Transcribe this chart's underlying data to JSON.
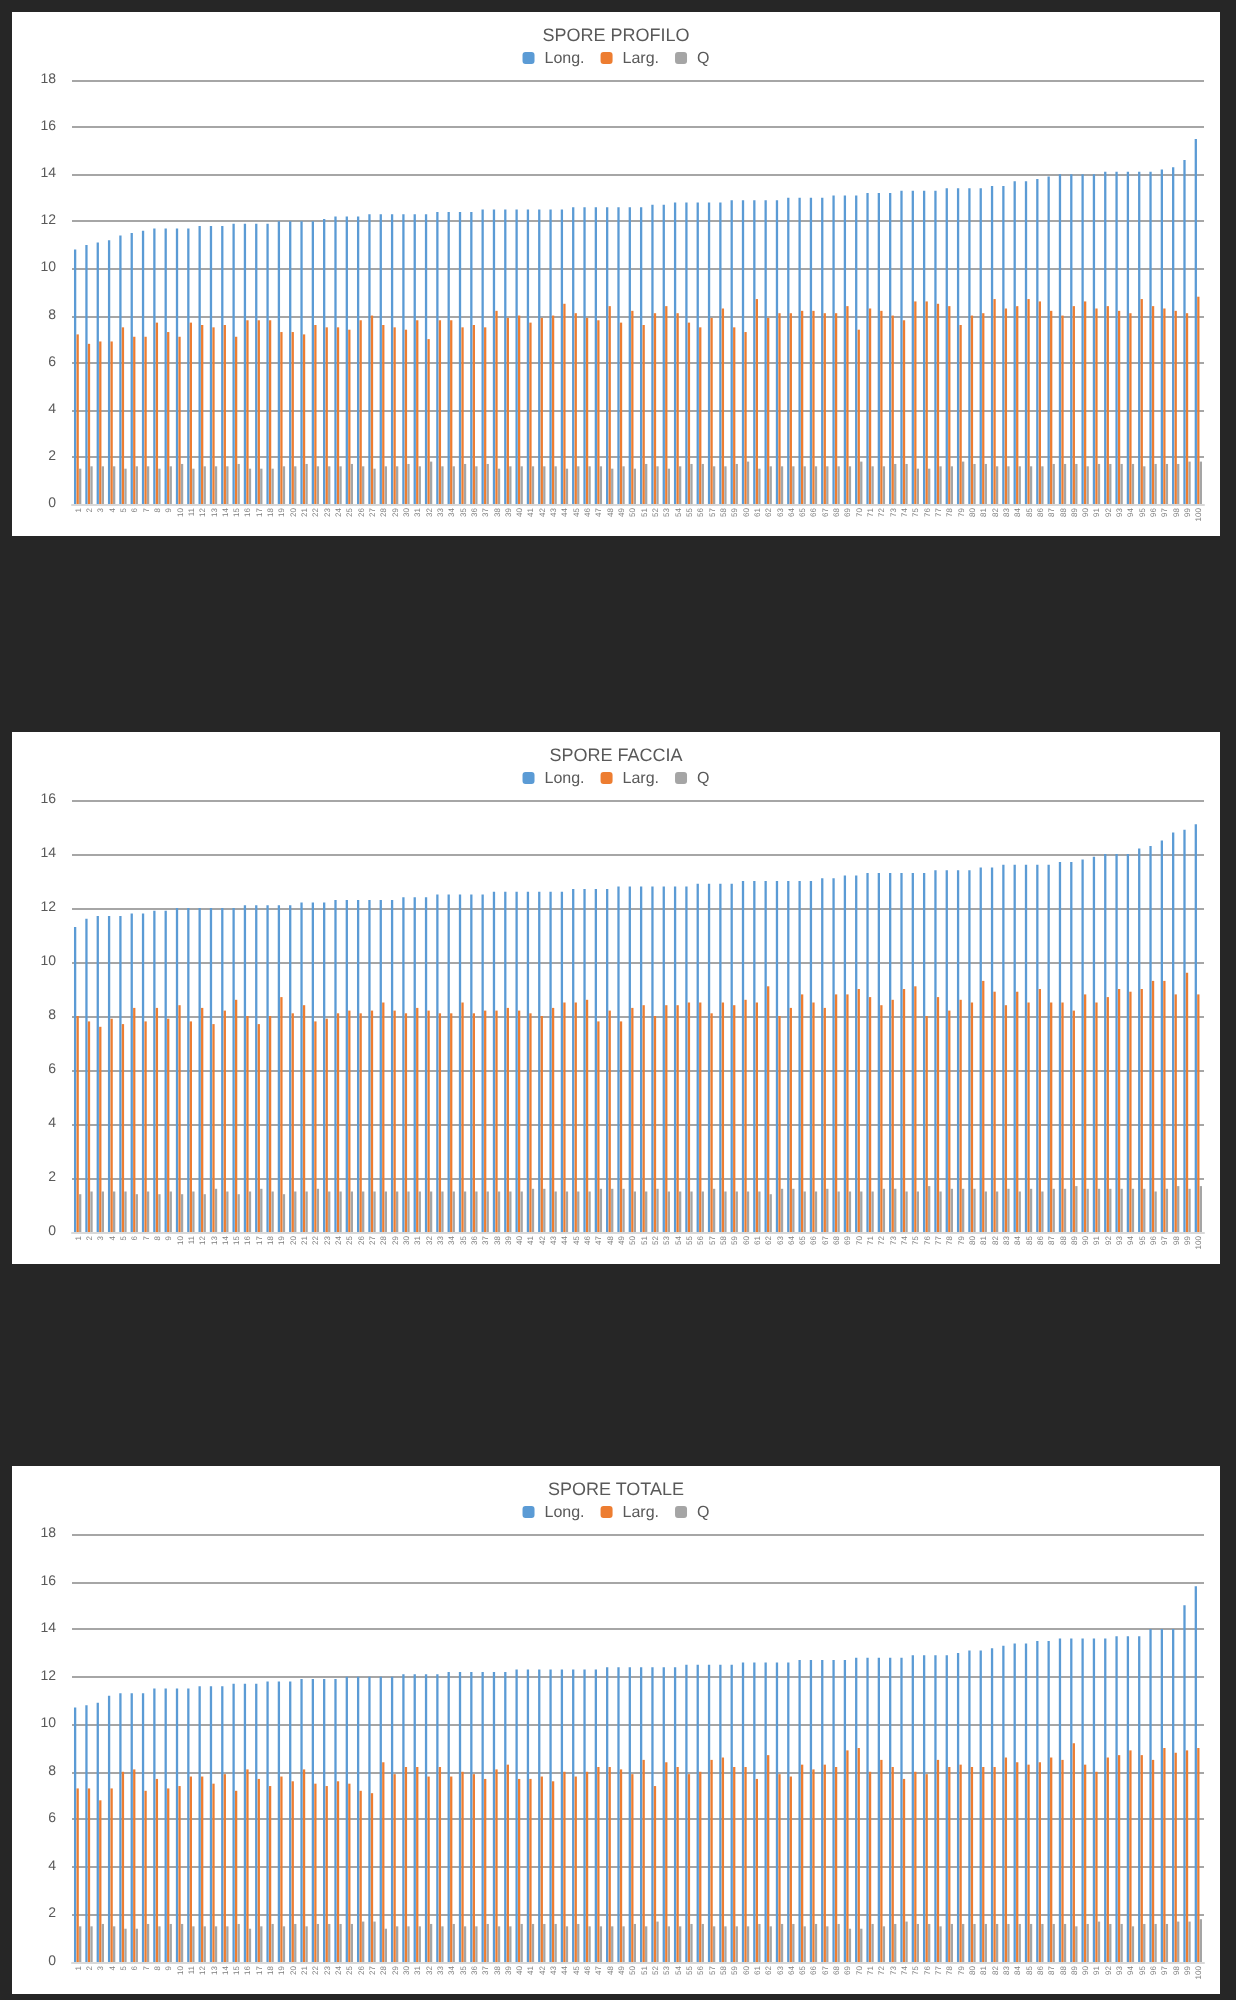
{
  "chart_data": [
    {
      "type": "bar",
      "title": "SPORE PROFILO",
      "legend": "top",
      "grid": "y",
      "ylim": [
        0,
        18
      ],
      "yticks": [
        0,
        2,
        4,
        6,
        8,
        10,
        12,
        14,
        16,
        18
      ],
      "categories": [
        "1",
        "2",
        "3",
        "4",
        "5",
        "6",
        "7",
        "8",
        "9",
        "10",
        "11",
        "12",
        "13",
        "14",
        "15",
        "16",
        "17",
        "18",
        "19",
        "20",
        "21",
        "22",
        "23",
        "24",
        "25",
        "26",
        "27",
        "28",
        "29",
        "30",
        "31",
        "32",
        "33",
        "34",
        "35",
        "36",
        "37",
        "38",
        "39",
        "40",
        "41",
        "42",
        "43",
        "44",
        "45",
        "46",
        "47",
        "48",
        "49",
        "50",
        "51",
        "52",
        "53",
        "54",
        "55",
        "56",
        "57",
        "58",
        "59",
        "60",
        "61",
        "62",
        "63",
        "64",
        "65",
        "66",
        "67",
        "68",
        "69",
        "70",
        "71",
        "72",
        "73",
        "74",
        "75",
        "76",
        "77",
        "78",
        "79",
        "80",
        "81",
        "82",
        "83",
        "84",
        "85",
        "86",
        "87",
        "88",
        "89",
        "90",
        "91",
        "92",
        "93",
        "94",
        "95",
        "96",
        "97",
        "98",
        "99",
        "100"
      ],
      "series": [
        {
          "name": "Long.",
          "color": "#5b9bd5",
          "values": [
            10.8,
            11.0,
            11.1,
            11.2,
            11.4,
            11.5,
            11.6,
            11.7,
            11.7,
            11.7,
            11.7,
            11.8,
            11.8,
            11.8,
            11.9,
            11.9,
            11.9,
            11.9,
            12.0,
            12.0,
            12.0,
            12.0,
            12.1,
            12.2,
            12.2,
            12.2,
            12.3,
            12.3,
            12.3,
            12.3,
            12.3,
            12.3,
            12.4,
            12.4,
            12.4,
            12.4,
            12.5,
            12.5,
            12.5,
            12.5,
            12.5,
            12.5,
            12.5,
            12.5,
            12.6,
            12.6,
            12.6,
            12.6,
            12.6,
            12.6,
            12.6,
            12.7,
            12.7,
            12.8,
            12.8,
            12.8,
            12.8,
            12.8,
            12.9,
            12.9,
            12.9,
            12.9,
            12.9,
            13.0,
            13.0,
            13.0,
            13.0,
            13.1,
            13.1,
            13.1,
            13.2,
            13.2,
            13.2,
            13.3,
            13.3,
            13.3,
            13.3,
            13.4,
            13.4,
            13.4,
            13.4,
            13.5,
            13.5,
            13.7,
            13.7,
            13.8,
            13.9,
            14.0,
            14.0,
            14.0,
            14.0,
            14.1,
            14.1,
            14.1,
            14.1,
            14.1,
            14.2,
            14.3,
            14.6,
            15.5
          ]
        },
        {
          "name": "Larg.",
          "color": "#ed7d31",
          "values": [
            7.2,
            6.8,
            6.9,
            6.9,
            7.5,
            7.1,
            7.1,
            7.7,
            7.3,
            7.1,
            7.7,
            7.6,
            7.5,
            7.6,
            7.1,
            7.8,
            7.8,
            7.8,
            7.3,
            7.3,
            7.2,
            7.6,
            7.5,
            7.5,
            7.4,
            7.8,
            8.0,
            7.6,
            7.5,
            7.4,
            7.8,
            7.0,
            7.8,
            7.8,
            7.5,
            7.6,
            7.5,
            8.2,
            7.9,
            8.0,
            7.7,
            7.9,
            8.0,
            8.5,
            8.1,
            7.9,
            7.8,
            8.4,
            7.7,
            8.2,
            7.6,
            8.1,
            8.4,
            8.1,
            7.7,
            7.5,
            7.9,
            8.3,
            7.5,
            7.3,
            8.7,
            7.9,
            8.1,
            8.1,
            8.2,
            8.2,
            8.1,
            8.1,
            8.4,
            7.4,
            8.3,
            8.2,
            8.0,
            7.8,
            8.6,
            8.6,
            8.5,
            8.4,
            7.6,
            8.0,
            8.1,
            8.7,
            8.3,
            8.4,
            8.7,
            8.6,
            8.2,
            8.0,
            8.4,
            8.6,
            8.3,
            8.4,
            8.2,
            8.1,
            8.7,
            8.4,
            8.3,
            8.2,
            8.1,
            8.8
          ]
        },
        {
          "name": "Q",
          "color": "#a5a5a5",
          "values": [
            1.5,
            1.6,
            1.6,
            1.6,
            1.5,
            1.6,
            1.6,
            1.5,
            1.6,
            1.7,
            1.5,
            1.6,
            1.6,
            1.6,
            1.7,
            1.5,
            1.5,
            1.5,
            1.6,
            1.6,
            1.7,
            1.6,
            1.6,
            1.6,
            1.7,
            1.6,
            1.5,
            1.6,
            1.6,
            1.7,
            1.6,
            1.8,
            1.6,
            1.6,
            1.7,
            1.6,
            1.7,
            1.5,
            1.6,
            1.6,
            1.6,
            1.6,
            1.6,
            1.5,
            1.6,
            1.6,
            1.6,
            1.5,
            1.6,
            1.5,
            1.7,
            1.6,
            1.5,
            1.6,
            1.7,
            1.7,
            1.6,
            1.6,
            1.7,
            1.8,
            1.5,
            1.6,
            1.6,
            1.6,
            1.6,
            1.6,
            1.6,
            1.6,
            1.6,
            1.8,
            1.6,
            1.6,
            1.7,
            1.7,
            1.5,
            1.5,
            1.6,
            1.6,
            1.8,
            1.7,
            1.7,
            1.6,
            1.6,
            1.6,
            1.6,
            1.6,
            1.7,
            1.7,
            1.7,
            1.6,
            1.7,
            1.7,
            1.7,
            1.7,
            1.6,
            1.7,
            1.7,
            1.7,
            1.8,
            1.8
          ]
        }
      ]
    },
    {
      "type": "bar",
      "title": "SPORE FACCIA",
      "legend": "top",
      "grid": "y",
      "ylim": [
        0,
        16
      ],
      "yticks": [
        0,
        2,
        4,
        6,
        8,
        10,
        12,
        14,
        16
      ],
      "categories": [
        "1",
        "2",
        "3",
        "4",
        "5",
        "6",
        "7",
        "8",
        "9",
        "10",
        "11",
        "12",
        "13",
        "14",
        "15",
        "16",
        "17",
        "18",
        "19",
        "20",
        "21",
        "22",
        "23",
        "24",
        "25",
        "26",
        "27",
        "28",
        "29",
        "30",
        "31",
        "32",
        "33",
        "34",
        "35",
        "36",
        "37",
        "38",
        "39",
        "40",
        "41",
        "42",
        "43",
        "44",
        "45",
        "46",
        "47",
        "48",
        "49",
        "50",
        "51",
        "52",
        "53",
        "54",
        "55",
        "56",
        "57",
        "58",
        "59",
        "60",
        "61",
        "62",
        "63",
        "64",
        "65",
        "66",
        "67",
        "68",
        "69",
        "70",
        "71",
        "72",
        "73",
        "74",
        "75",
        "76",
        "77",
        "78",
        "79",
        "80",
        "81",
        "82",
        "83",
        "84",
        "85",
        "86",
        "87",
        "88",
        "89",
        "90",
        "91",
        "92",
        "93",
        "94",
        "95",
        "96",
        "97",
        "98",
        "99",
        "100"
      ],
      "series": [
        {
          "name": "Long.",
          "color": "#5b9bd5",
          "values": [
            11.3,
            11.6,
            11.7,
            11.7,
            11.7,
            11.8,
            11.8,
            11.9,
            11.9,
            12.0,
            12.0,
            12.0,
            12.0,
            12.0,
            12.0,
            12.1,
            12.1,
            12.1,
            12.1,
            12.1,
            12.2,
            12.2,
            12.2,
            12.3,
            12.3,
            12.3,
            12.3,
            12.3,
            12.3,
            12.4,
            12.4,
            12.4,
            12.5,
            12.5,
            12.5,
            12.5,
            12.5,
            12.6,
            12.6,
            12.6,
            12.6,
            12.6,
            12.6,
            12.6,
            12.7,
            12.7,
            12.7,
            12.7,
            12.8,
            12.8,
            12.8,
            12.8,
            12.8,
            12.8,
            12.8,
            12.9,
            12.9,
            12.9,
            12.9,
            13.0,
            13.0,
            13.0,
            13.0,
            13.0,
            13.0,
            13.0,
            13.1,
            13.1,
            13.2,
            13.2,
            13.3,
            13.3,
            13.3,
            13.3,
            13.3,
            13.3,
            13.4,
            13.4,
            13.4,
            13.4,
            13.5,
            13.5,
            13.6,
            13.6,
            13.6,
            13.6,
            13.6,
            13.7,
            13.7,
            13.8,
            13.9,
            14.0,
            14.0,
            14.0,
            14.2,
            14.3,
            14.5,
            14.8,
            14.9,
            15.1
          ]
        },
        {
          "name": "Larg.",
          "color": "#ed7d31",
          "values": [
            8.0,
            7.8,
            7.6,
            7.9,
            7.7,
            8.3,
            7.8,
            8.3,
            7.9,
            8.4,
            7.8,
            8.3,
            7.7,
            8.2,
            8.6,
            8.0,
            7.7,
            8.0,
            8.7,
            8.1,
            8.4,
            7.8,
            7.9,
            8.1,
            8.2,
            8.1,
            8.2,
            8.5,
            8.2,
            8.1,
            8.3,
            8.2,
            8.1,
            8.1,
            8.5,
            8.1,
            8.2,
            8.2,
            8.3,
            8.2,
            8.1,
            8.0,
            8.3,
            8.5,
            8.5,
            8.6,
            7.8,
            8.2,
            7.8,
            8.3,
            8.4,
            8.0,
            8.4,
            8.4,
            8.5,
            8.5,
            8.1,
            8.5,
            8.4,
            8.6,
            8.5,
            9.1,
            8.0,
            8.3,
            8.8,
            8.5,
            8.3,
            8.8,
            8.8,
            9.0,
            8.7,
            8.4,
            8.6,
            9.0,
            9.1,
            8.0,
            8.7,
            8.2,
            8.6,
            8.5,
            9.3,
            8.9,
            8.4,
            8.9,
            8.5,
            9.0,
            8.5,
            8.5,
            8.2,
            8.8,
            8.5,
            8.7,
            9.0,
            8.9,
            9.0,
            9.3,
            9.3,
            8.8,
            9.6,
            8.8
          ]
        },
        {
          "name": "Q",
          "color": "#a5a5a5",
          "values": [
            1.4,
            1.5,
            1.5,
            1.5,
            1.5,
            1.4,
            1.5,
            1.4,
            1.5,
            1.4,
            1.5,
            1.4,
            1.6,
            1.5,
            1.4,
            1.5,
            1.6,
            1.5,
            1.4,
            1.5,
            1.5,
            1.6,
            1.5,
            1.5,
            1.5,
            1.5,
            1.5,
            1.5,
            1.5,
            1.5,
            1.5,
            1.5,
            1.5,
            1.5,
            1.5,
            1.5,
            1.5,
            1.5,
            1.5,
            1.5,
            1.6,
            1.6,
            1.5,
            1.5,
            1.5,
            1.5,
            1.6,
            1.6,
            1.6,
            1.5,
            1.5,
            1.6,
            1.5,
            1.5,
            1.5,
            1.5,
            1.6,
            1.5,
            1.5,
            1.5,
            1.5,
            1.4,
            1.6,
            1.6,
            1.5,
            1.5,
            1.6,
            1.5,
            1.5,
            1.5,
            1.5,
            1.6,
            1.6,
            1.5,
            1.5,
            1.7,
            1.5,
            1.6,
            1.6,
            1.6,
            1.5,
            1.5,
            1.6,
            1.5,
            1.6,
            1.5,
            1.6,
            1.6,
            1.7,
            1.6,
            1.6,
            1.6,
            1.6,
            1.6,
            1.6,
            1.5,
            1.6,
            1.7,
            1.6,
            1.7
          ]
        }
      ]
    },
    {
      "type": "bar",
      "title": "SPORE TOTALE",
      "legend": "top",
      "grid": "y",
      "ylim": [
        0,
        18
      ],
      "yticks": [
        0,
        2,
        4,
        6,
        8,
        10,
        12,
        14,
        16,
        18
      ],
      "categories": [
        "1",
        "2",
        "3",
        "4",
        "5",
        "6",
        "7",
        "8",
        "9",
        "10",
        "11",
        "12",
        "13",
        "14",
        "15",
        "16",
        "17",
        "18",
        "19",
        "20",
        "21",
        "22",
        "23",
        "24",
        "25",
        "26",
        "27",
        "28",
        "29",
        "30",
        "31",
        "32",
        "33",
        "34",
        "35",
        "36",
        "37",
        "38",
        "39",
        "40",
        "41",
        "42",
        "43",
        "44",
        "45",
        "46",
        "47",
        "48",
        "49",
        "50",
        "51",
        "52",
        "53",
        "54",
        "55",
        "56",
        "57",
        "58",
        "59",
        "60",
        "61",
        "62",
        "63",
        "64",
        "65",
        "66",
        "67",
        "68",
        "69",
        "70",
        "71",
        "72",
        "73",
        "74",
        "75",
        "76",
        "77",
        "78",
        "79",
        "80",
        "81",
        "82",
        "83",
        "84",
        "85",
        "86",
        "87",
        "88",
        "89",
        "90",
        "91",
        "92",
        "93",
        "94",
        "95",
        "96",
        "97",
        "98",
        "99",
        "100"
      ],
      "series": [
        {
          "name": "Long.",
          "color": "#5b9bd5",
          "values": [
            10.7,
            10.8,
            10.9,
            11.2,
            11.3,
            11.3,
            11.3,
            11.5,
            11.5,
            11.5,
            11.5,
            11.6,
            11.6,
            11.6,
            11.7,
            11.7,
            11.7,
            11.8,
            11.8,
            11.8,
            11.9,
            11.9,
            11.9,
            11.9,
            12.0,
            12.0,
            12.0,
            12.0,
            12.0,
            12.1,
            12.1,
            12.1,
            12.1,
            12.2,
            12.2,
            12.2,
            12.2,
            12.2,
            12.2,
            12.3,
            12.3,
            12.3,
            12.3,
            12.3,
            12.3,
            12.3,
            12.3,
            12.4,
            12.4,
            12.4,
            12.4,
            12.4,
            12.4,
            12.4,
            12.5,
            12.5,
            12.5,
            12.5,
            12.5,
            12.6,
            12.6,
            12.6,
            12.6,
            12.6,
            12.7,
            12.7,
            12.7,
            12.7,
            12.7,
            12.8,
            12.8,
            12.8,
            12.8,
            12.8,
            12.9,
            12.9,
            12.9,
            12.9,
            13.0,
            13.1,
            13.1,
            13.2,
            13.3,
            13.4,
            13.4,
            13.5,
            13.5,
            13.6,
            13.6,
            13.6,
            13.6,
            13.6,
            13.7,
            13.7,
            13.7,
            14.0,
            14.0,
            14.0,
            15.0,
            15.8
          ]
        },
        {
          "name": "Larg.",
          "color": "#ed7d31",
          "values": [
            7.3,
            7.3,
            6.8,
            7.3,
            8.0,
            8.1,
            7.2,
            7.7,
            7.3,
            7.4,
            7.8,
            7.8,
            7.5,
            7.9,
            7.2,
            8.1,
            7.7,
            7.4,
            7.8,
            7.6,
            8.1,
            7.5,
            7.4,
            7.6,
            7.5,
            7.2,
            7.1,
            8.4,
            7.9,
            8.2,
            8.2,
            7.8,
            8.2,
            7.8,
            8.0,
            7.9,
            7.7,
            8.1,
            8.3,
            7.7,
            7.7,
            7.8,
            7.6,
            8.0,
            7.8,
            8.0,
            8.2,
            8.2,
            8.1,
            7.9,
            8.5,
            7.4,
            8.4,
            8.2,
            7.9,
            8.0,
            8.5,
            8.6,
            8.2,
            8.2,
            7.7,
            8.7,
            7.9,
            7.8,
            8.3,
            8.1,
            8.3,
            8.2,
            8.9,
            9.0,
            8.0,
            8.5,
            8.2,
            7.7,
            8.0,
            7.9,
            8.5,
            8.2,
            8.3,
            8.2,
            8.2,
            8.2,
            8.6,
            8.4,
            8.3,
            8.4,
            8.6,
            8.5,
            9.2,
            8.3,
            8.0,
            8.6,
            8.7,
            8.9,
            8.7,
            8.5,
            9.0,
            8.8,
            8.9,
            9.0
          ]
        },
        {
          "name": "Q",
          "color": "#a5a5a5",
          "values": [
            1.5,
            1.5,
            1.6,
            1.5,
            1.4,
            1.4,
            1.6,
            1.5,
            1.6,
            1.6,
            1.5,
            1.5,
            1.5,
            1.5,
            1.6,
            1.4,
            1.5,
            1.6,
            1.5,
            1.6,
            1.5,
            1.6,
            1.6,
            1.6,
            1.6,
            1.7,
            1.7,
            1.4,
            1.5,
            1.5,
            1.5,
            1.6,
            1.5,
            1.6,
            1.5,
            1.5,
            1.6,
            1.5,
            1.5,
            1.6,
            1.6,
            1.6,
            1.6,
            1.5,
            1.6,
            1.5,
            1.5,
            1.5,
            1.5,
            1.6,
            1.5,
            1.7,
            1.5,
            1.5,
            1.6,
            1.6,
            1.5,
            1.5,
            1.5,
            1.5,
            1.6,
            1.5,
            1.6,
            1.6,
            1.5,
            1.6,
            1.5,
            1.6,
            1.4,
            1.4,
            1.6,
            1.5,
            1.6,
            1.7,
            1.6,
            1.6,
            1.5,
            1.6,
            1.6,
            1.6,
            1.6,
            1.6,
            1.6,
            1.6,
            1.6,
            1.6,
            1.6,
            1.6,
            1.5,
            1.6,
            1.7,
            1.6,
            1.6,
            1.5,
            1.6,
            1.6,
            1.6,
            1.7,
            1.7,
            1.8
          ]
        }
      ]
    }
  ]
}
